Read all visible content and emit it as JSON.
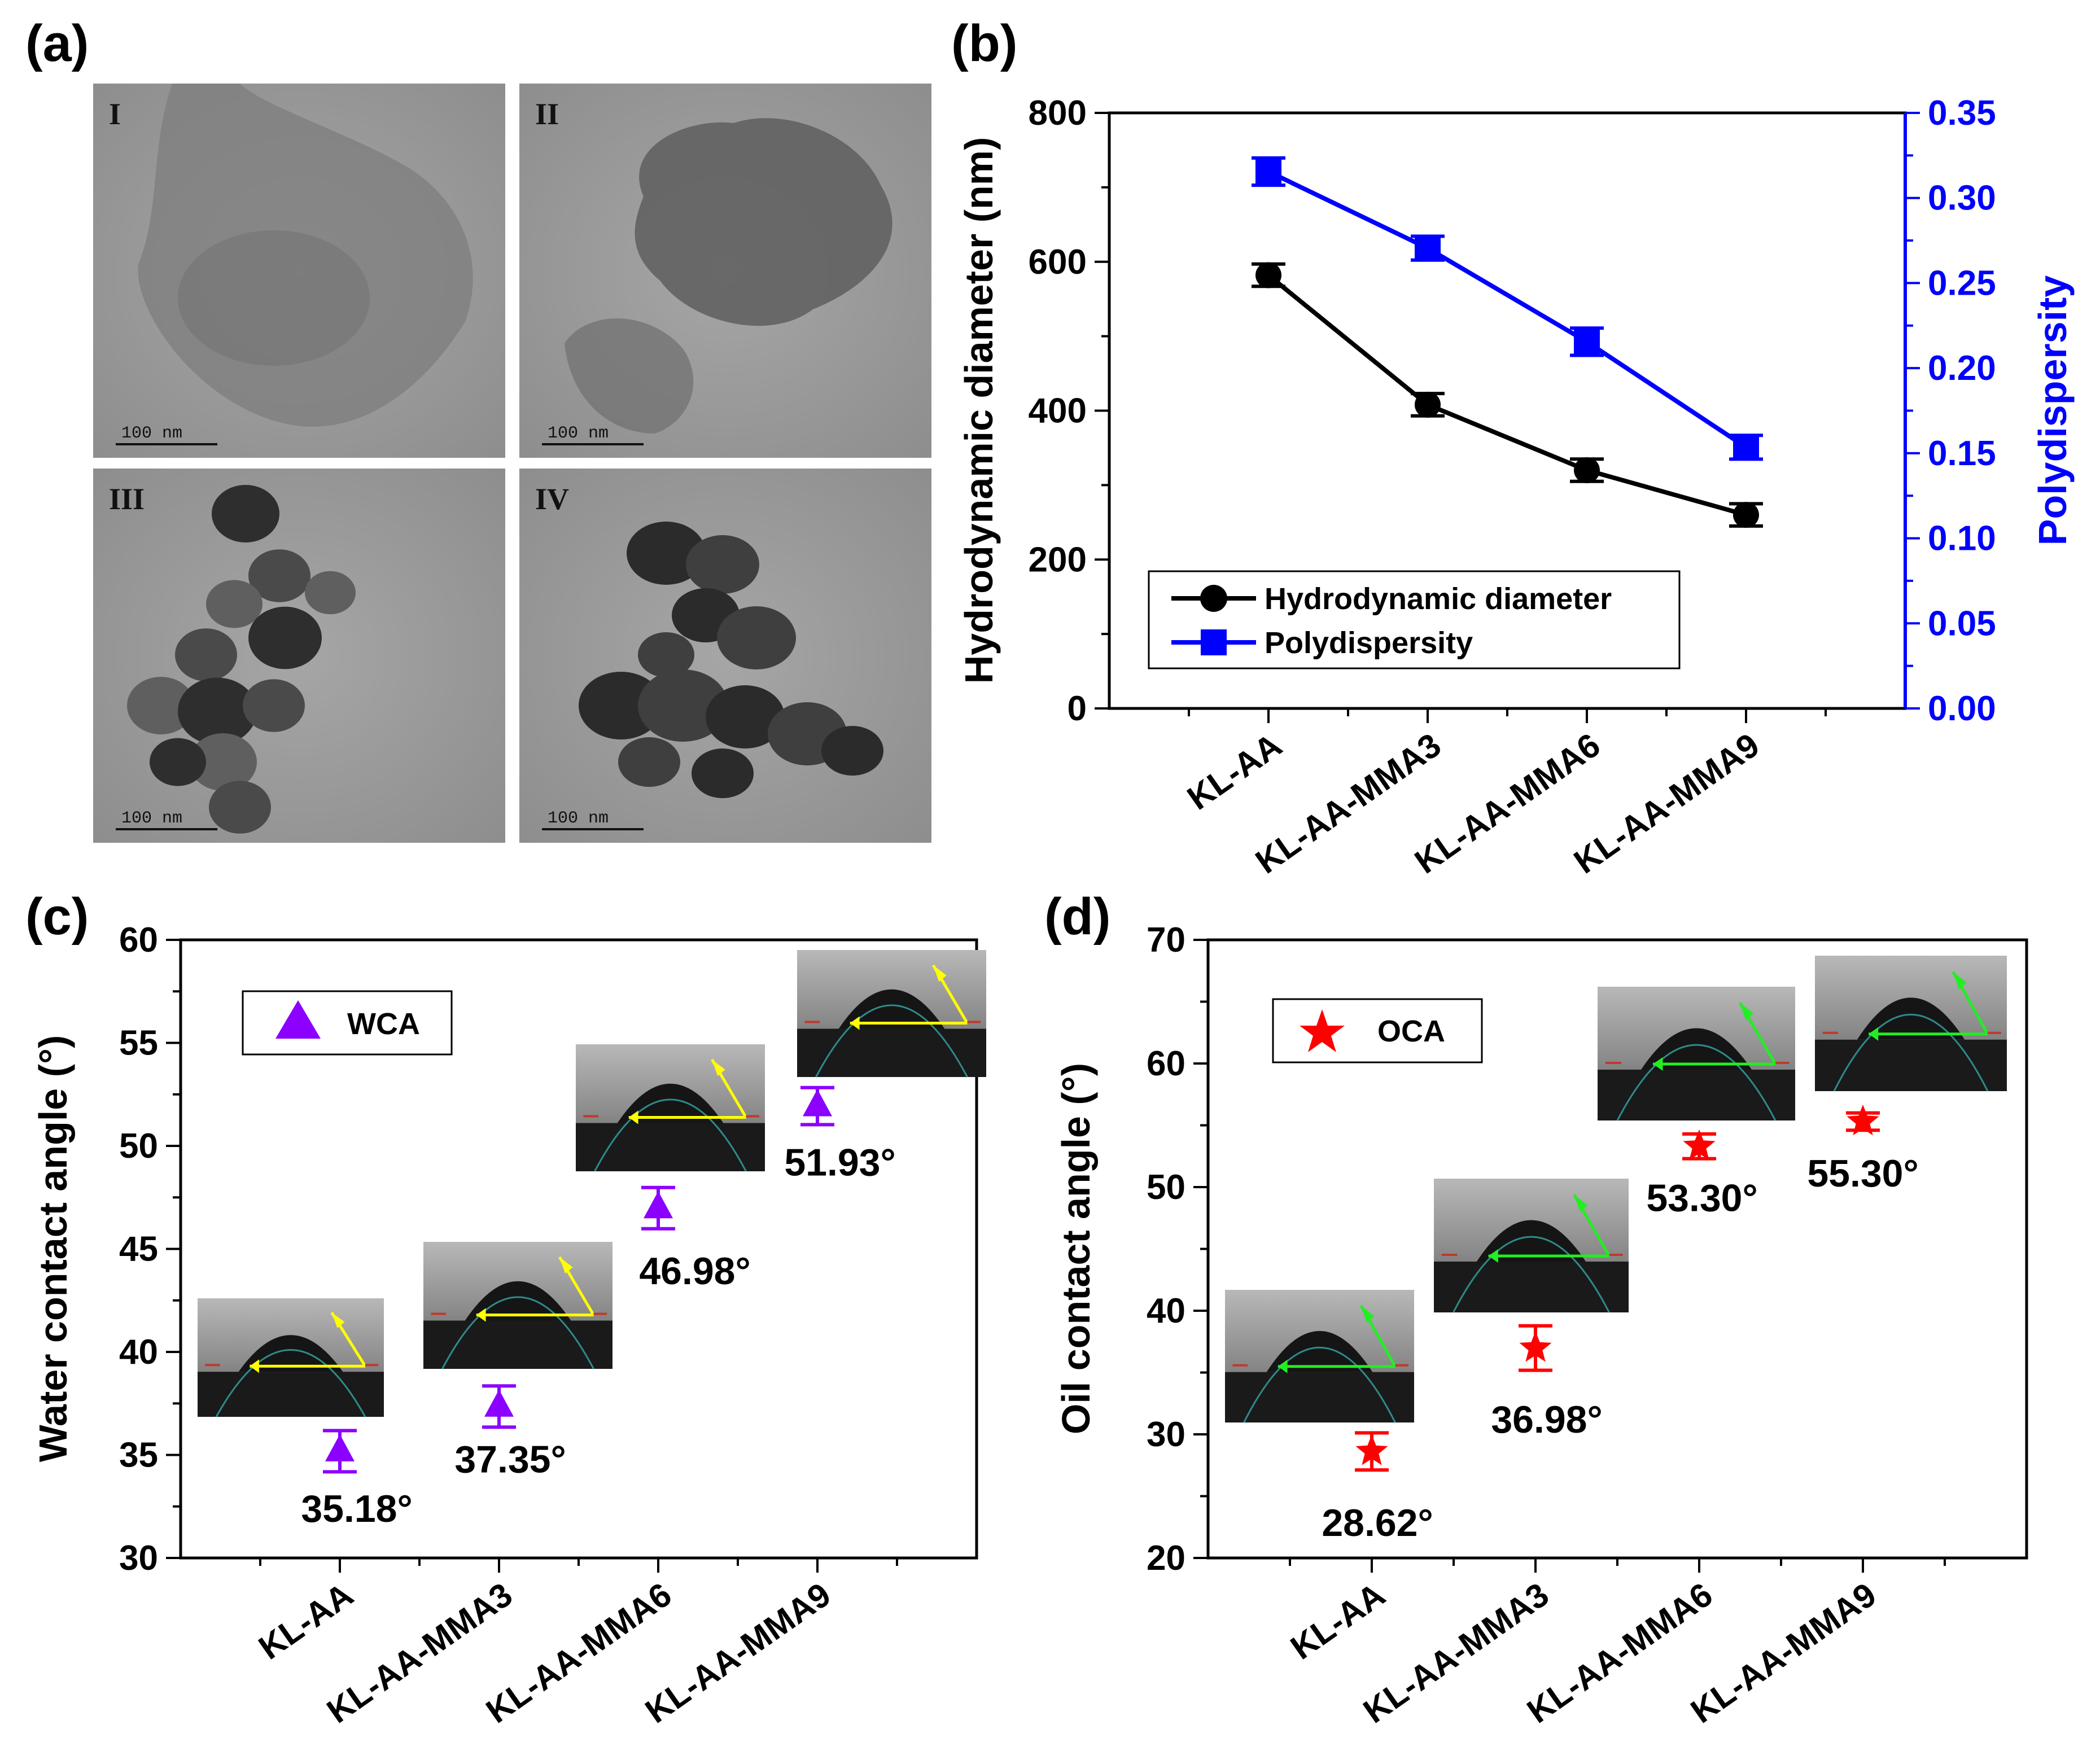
{
  "panels": {
    "a": "(a)",
    "b": "(b)",
    "c": "(c)",
    "d": "(d)"
  },
  "tem": {
    "images": [
      {
        "label": "I",
        "scale": "100 nm",
        "morphology": "sheet"
      },
      {
        "label": "II",
        "scale": "100 nm",
        "morphology": "cloud"
      },
      {
        "label": "III",
        "scale": "100 nm",
        "morphology": "particles"
      },
      {
        "label": "IV",
        "scale": "100 nm",
        "morphology": "cluster"
      }
    ]
  },
  "chart_data": [
    {
      "id": "b",
      "type": "line",
      "categories": [
        "KL-AA",
        "KL-AA-MMA3",
        "KL-AA-MMA6",
        "KL-AA-MMA9"
      ],
      "series": [
        {
          "name": "Hydrodynamic diameter",
          "axis": "left",
          "color": "#000000",
          "marker": "circle",
          "values": [
            582,
            408,
            320,
            260
          ],
          "errors": [
            15,
            15,
            15,
            15
          ]
        },
        {
          "name": "Polydispersity",
          "axis": "right",
          "color": "#0000ff",
          "marker": "square",
          "values": [
            0.3155,
            0.2705,
            0.2155,
            0.1535
          ],
          "errors": [
            0.008,
            0.007,
            0.008,
            0.007
          ]
        }
      ],
      "ylabel": "Hydrodynamic diameter (nm)",
      "y2label": "Polydispersity",
      "ylim": [
        0,
        800
      ],
      "y2lim": [
        0,
        0.35
      ],
      "yticks": [
        "0",
        "200",
        "400",
        "600",
        "800"
      ],
      "y2ticks": [
        "0.00",
        "0.05",
        "0.10",
        "0.15",
        "0.20",
        "0.25",
        "0.30",
        "0.35"
      ],
      "legend": {
        "position": "bottom-left",
        "entries": [
          "Hydrodynamic diameter",
          "Polydispersity"
        ]
      }
    },
    {
      "id": "c",
      "type": "scatter",
      "categories": [
        "KL-AA",
        "KL-AA-MMA3",
        "KL-AA-MMA6",
        "KL-AA-MMA9"
      ],
      "series": [
        {
          "name": "WCA",
          "color": "#8b00ff",
          "marker": "triangle",
          "values": [
            35.18,
            37.35,
            46.98,
            51.93
          ],
          "errors": [
            1.0,
            1.0,
            1.0,
            0.9
          ]
        }
      ],
      "value_labels": [
        "35.18°",
        "37.35°",
        "46.98°",
        "51.93°"
      ],
      "ylabel": "Water contact angle (°)",
      "ylim": [
        30,
        60
      ],
      "yticks": [
        "30",
        "35",
        "40",
        "45",
        "50",
        "55",
        "60"
      ],
      "legend": {
        "position": "top-left",
        "entries": [
          "WCA"
        ]
      },
      "insets": {
        "count": 4,
        "line_color": "#ffff00",
        "content": "droplet contact-angle photograph"
      }
    },
    {
      "id": "d",
      "type": "scatter",
      "categories": [
        "KL-AA",
        "KL-AA-MMA3",
        "KL-AA-MMA6",
        "KL-AA-MMA9"
      ],
      "series": [
        {
          "name": "OCA",
          "color": "#ff0000",
          "marker": "star",
          "values": [
            28.62,
            36.98,
            53.3,
            55.3
          ],
          "errors": [
            1.5,
            1.8,
            1.0,
            0.7
          ]
        }
      ],
      "value_labels": [
        "28.62°",
        "36.98°",
        "53.30°",
        "55.30°"
      ],
      "ylabel": "Oil contact angle (°)",
      "ylim": [
        20,
        70
      ],
      "yticks": [
        "20",
        "30",
        "40",
        "50",
        "60",
        "70"
      ],
      "legend": {
        "position": "top-left",
        "entries": [
          "OCA"
        ]
      },
      "insets": {
        "count": 4,
        "line_color": "#22ee22",
        "content": "droplet contact-angle photograph"
      }
    }
  ]
}
